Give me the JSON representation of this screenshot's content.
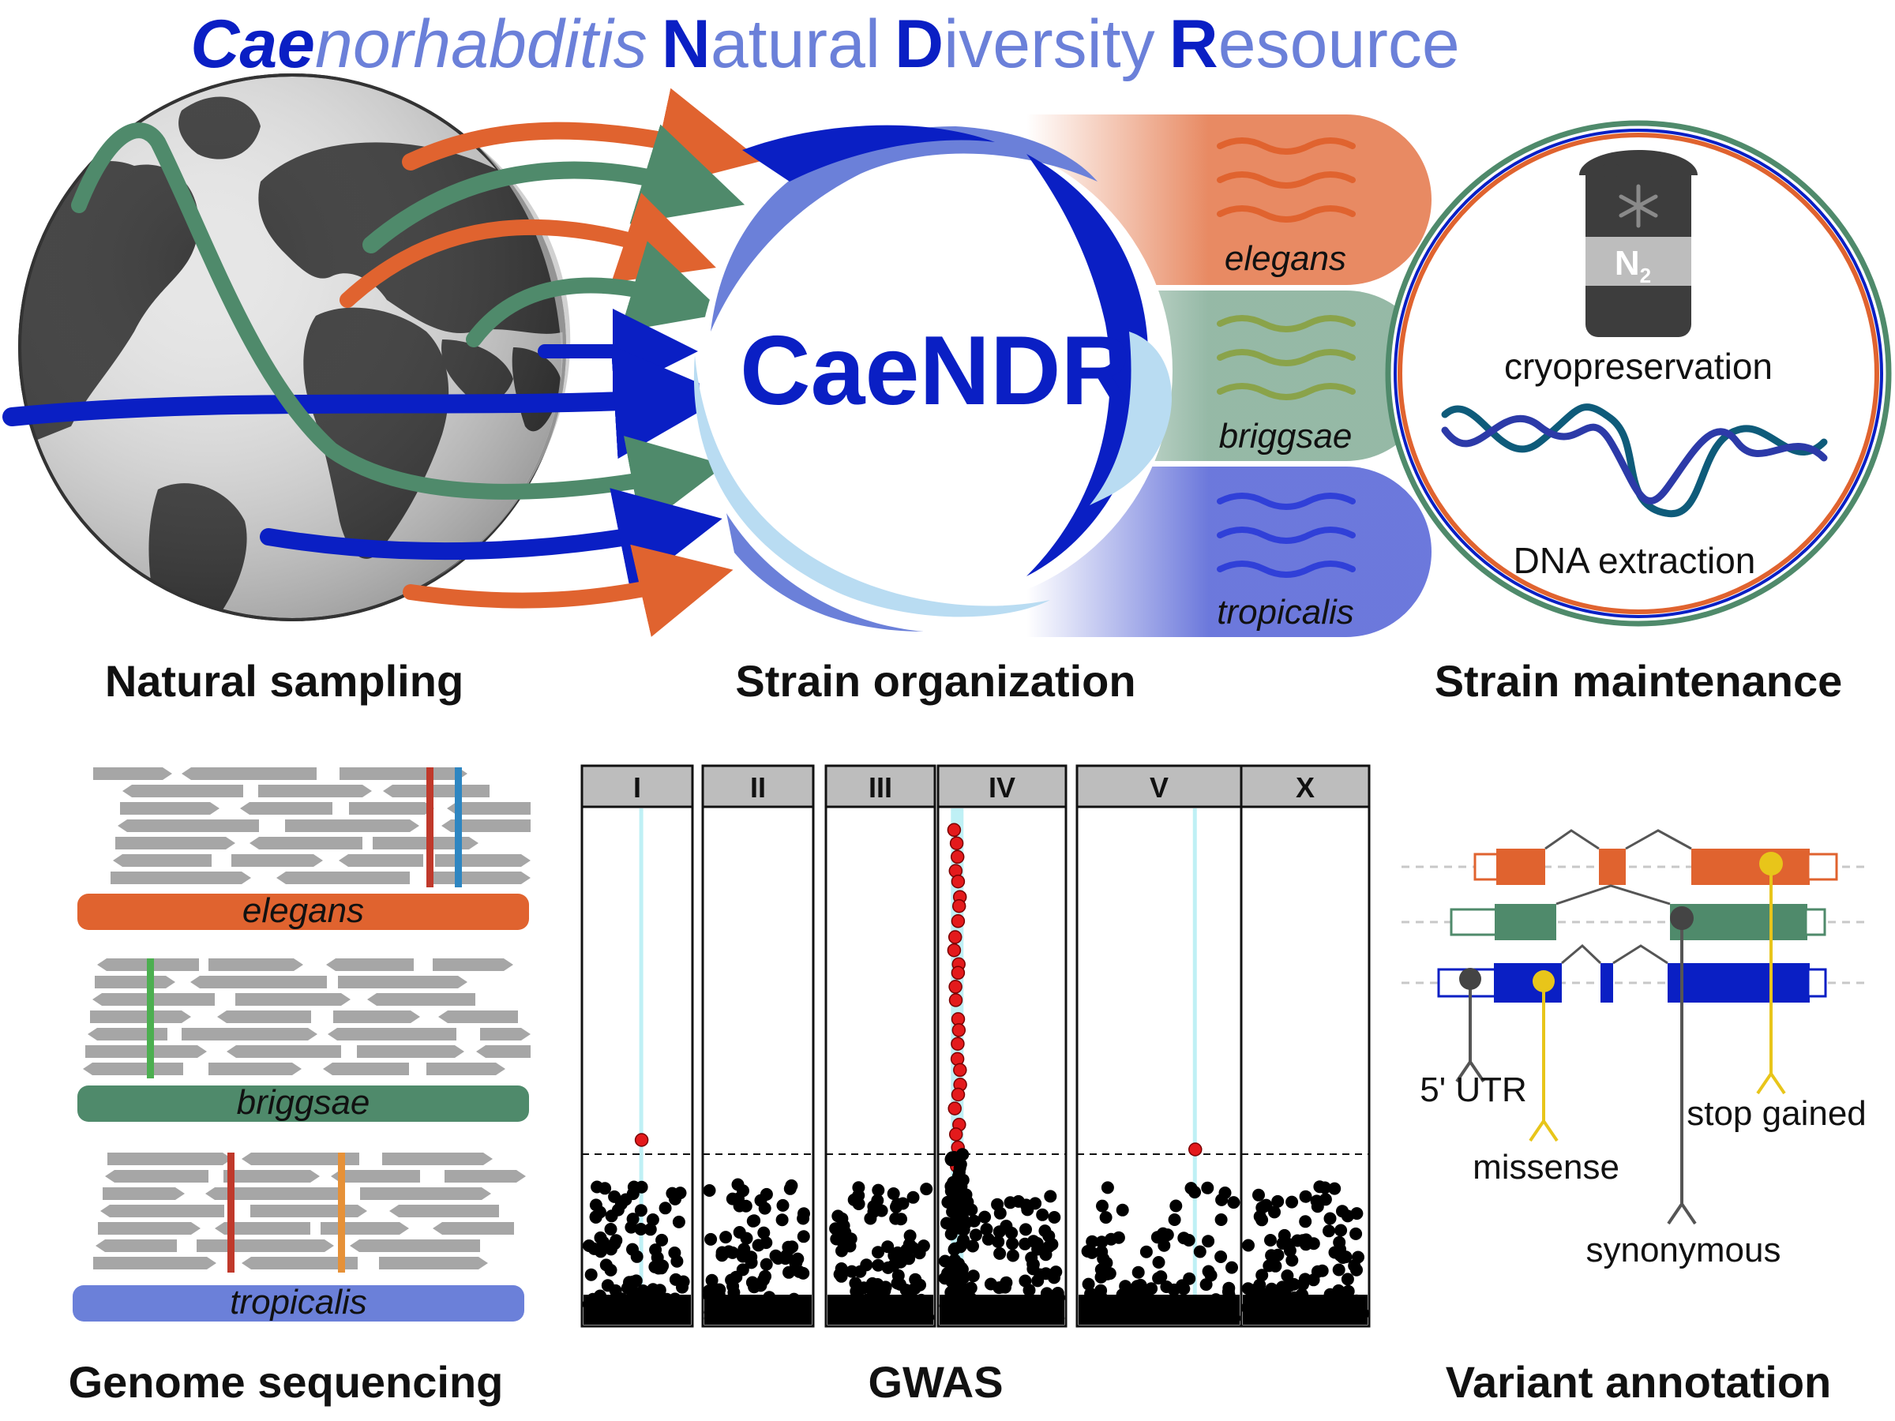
{
  "title": {
    "part1": "Cae",
    "part2": "norhabditis",
    "part3": "N",
    "part4": "atural",
    "part5": "D",
    "part6": "iversity",
    "part7": "R",
    "part8": "esource"
  },
  "logo": "CaeNDR",
  "species": [
    "elegans",
    "briggsae",
    "tropicalis"
  ],
  "n2": {
    "main": "N",
    "sub": "2"
  },
  "maintenance": {
    "cryo": "cryopreservation",
    "dna": "DNA extraction"
  },
  "sections": {
    "natural_sampling": "Natural sampling",
    "strain_organization": "Strain organization",
    "strain_maintenance": "Strain maintenance",
    "genome_sequencing": "Genome sequencing",
    "gwas": "GWAS",
    "variant_annotation": "Variant annotation"
  },
  "gwas_panels": [
    "I",
    "II",
    "III",
    "IV",
    "V",
    "X"
  ],
  "variants": [
    "5' UTR",
    "missense",
    "synonymous",
    "stop gained"
  ],
  "colors": {
    "orange": "#e0632f",
    "green": "#4f8a6b",
    "blue": "#0a1fc4",
    "lightblue": "#b9dcf2",
    "midblue": "#6b80d9",
    "gray": "#a6a6a6",
    "yellow": "#e8c51a"
  }
}
